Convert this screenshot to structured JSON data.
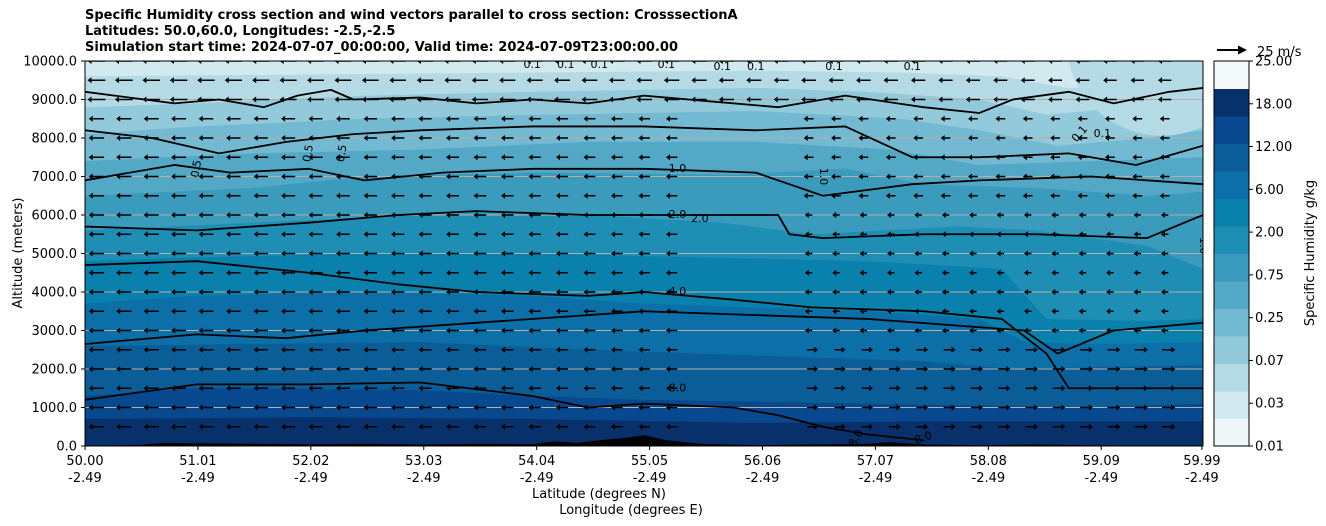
{
  "title_lines": [
    "Specific Humidity cross section and wind vectors parallel to cross section: CrosssectionA",
    "Latitudes: 50.0,60.0, Longitudes: -2.5,-2.5",
    "Simulation start time: 2024-07-07_00:00:00, Valid time: 2024-07-09T23:00:00.00"
  ],
  "colors": {
    "bands": [
      "#08306b",
      "#08488e",
      "#0b5d97",
      "#0d6fa8",
      "#0a80ad",
      "#1f8eb4",
      "#3a9bbd",
      "#53a8c6",
      "#73b9d2",
      "#92cadc",
      "#b4dae6",
      "#d2e9ef",
      "#eef7fa"
    ],
    "ground": "#000000",
    "contour": "#000000",
    "grid": "#b0b0b0"
  },
  "chart_data": {
    "type": "contourf",
    "title": "Specific Humidity cross section and wind vectors parallel to cross section: CrosssectionA",
    "xlabel_1": "Latitude (degrees N)",
    "xlabel_2": "Longitude (degrees E)",
    "ylabel": "Altitude (meters)",
    "ylim": [
      0,
      10000
    ],
    "xlim": [
      50.0,
      60.0
    ],
    "y_ticks": [
      "0.0",
      "1000.0",
      "2000.0",
      "3000.0",
      "4000.0",
      "5000.0",
      "6000.0",
      "7000.0",
      "8000.0",
      "9000.0",
      "10000.0"
    ],
    "x_ticks": [
      {
        "lat": "50.00",
        "lon": "-2.49"
      },
      {
        "lat": "51.01",
        "lon": "-2.49"
      },
      {
        "lat": "52.02",
        "lon": "-2.49"
      },
      {
        "lat": "53.03",
        "lon": "-2.49"
      },
      {
        "lat": "54.04",
        "lon": "-2.49"
      },
      {
        "lat": "55.05",
        "lon": "-2.49"
      },
      {
        "lat": "56.06",
        "lon": "-2.49"
      },
      {
        "lat": "57.07",
        "lon": "-2.49"
      },
      {
        "lat": "58.08",
        "lon": "-2.49"
      },
      {
        "lat": "59.09",
        "lon": "-2.49"
      },
      {
        "lat": "59.99",
        "lon": "-2.49"
      }
    ],
    "colorbar": {
      "label": "Specific Humidity g/kg",
      "levels": [
        "0.01",
        "0.03",
        "0.07",
        "0.25",
        "0.75",
        "2.00",
        "6.00",
        "12.00",
        "18.00",
        "25.00"
      ]
    },
    "quiver_key": {
      "label": "25 m/s",
      "value": 25
    },
    "contours": [
      {
        "level": "0.1",
        "labels": [
          "0.1",
          "0.1",
          "0.1",
          "0.1",
          "0.1",
          "0.1",
          "0.1",
          "0.1",
          "0.1",
          "0.1"
        ]
      },
      {
        "level": "0.5",
        "labels": [
          "0.5",
          "0.5"
        ]
      },
      {
        "level": "1.0",
        "labels": [
          "1.0",
          "1.0",
          "1.0"
        ]
      },
      {
        "level": "2.0",
        "labels": [
          "2.0",
          "2.0"
        ]
      },
      {
        "level": "4.0",
        "labels": [
          "4.0"
        ]
      },
      {
        "level": "8.0",
        "labels": [
          "8.0",
          "8.0",
          "8.0"
        ]
      },
      {
        "level": "0.5",
        "labels": [
          "0.5"
        ]
      }
    ],
    "contour_labels": [
      "0.5",
      "1.0",
      "2.0",
      "2.0",
      "4.0",
      "8.0",
      "1.0",
      "1.0",
      "0.1",
      "0.1",
      "0.5",
      "0.5",
      "8.0",
      "8.0",
      "0.1",
      "0.1",
      "0.1",
      "0.1",
      "0.1",
      "0.1",
      "0.1",
      "0.1"
    ],
    "wind_direction_summary": "Southward (leftward) vectors north up to ~55N at most levels; northward (rightward) vectors north of ~56N below 3000 m",
    "wind_reference": {
      "label": "25 m/s"
    }
  }
}
